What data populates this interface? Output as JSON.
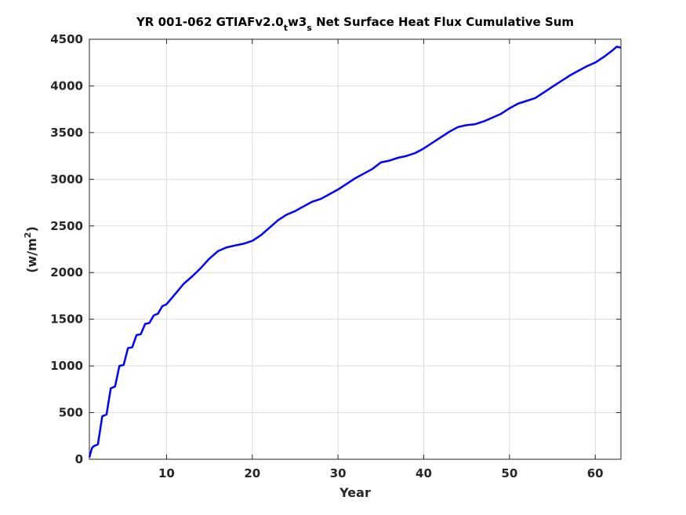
{
  "chart_data": {
    "type": "line",
    "title_parts": {
      "main": "YR 001-062 GTIAFv2.0",
      "sub1": "t",
      "mid": "w3",
      "sub2": "s",
      "rest": " Net Surface Heat Flux  Cumulative Sum"
    },
    "xlabel": "Year",
    "ylabel_main": "(w/m",
    "ylabel_sup": "2",
    "ylabel_end": ")",
    "xlim": [
      1,
      63
    ],
    "ylim": [
      0,
      4500
    ],
    "xticks": [
      10,
      20,
      30,
      40,
      50,
      60
    ],
    "yticks": [
      0,
      500,
      1000,
      1500,
      2000,
      2500,
      3000,
      3500,
      4000,
      4500
    ],
    "grid": true,
    "series": [
      {
        "color": "#0000ff",
        "x": [
          1,
          1.3,
          1.5,
          2,
          2.5,
          3,
          3.5,
          4,
          4.5,
          5,
          5.5,
          6,
          6.5,
          7,
          7.5,
          8,
          8.5,
          9,
          9.5,
          10,
          11,
          12,
          13,
          14,
          15,
          16,
          17,
          18,
          19,
          20,
          21,
          22,
          23,
          24,
          25,
          26,
          27,
          28,
          29,
          30,
          31,
          32,
          33,
          34,
          35,
          36,
          37,
          38,
          39,
          40,
          41,
          42,
          43,
          44,
          45,
          46,
          47,
          48,
          49,
          50,
          51,
          52,
          53,
          54,
          55,
          56,
          57,
          58,
          59,
          60,
          61,
          62,
          62.5,
          63
        ],
        "y": [
          20,
          120,
          140,
          160,
          460,
          480,
          760,
          780,
          1000,
          1010,
          1190,
          1200,
          1330,
          1340,
          1450,
          1460,
          1540,
          1560,
          1640,
          1660,
          1770,
          1880,
          1960,
          2050,
          2150,
          2230,
          2270,
          2290,
          2310,
          2340,
          2400,
          2480,
          2560,
          2620,
          2660,
          2710,
          2760,
          2790,
          2840,
          2890,
          2950,
          3010,
          3060,
          3110,
          3180,
          3200,
          3230,
          3250,
          3280,
          3330,
          3390,
          3450,
          3510,
          3560,
          3580,
          3590,
          3620,
          3660,
          3700,
          3760,
          3810,
          3840,
          3870,
          3930,
          3990,
          4050,
          4110,
          4160,
          4210,
          4250,
          4310,
          4380,
          4420,
          4410
        ]
      }
    ]
  }
}
